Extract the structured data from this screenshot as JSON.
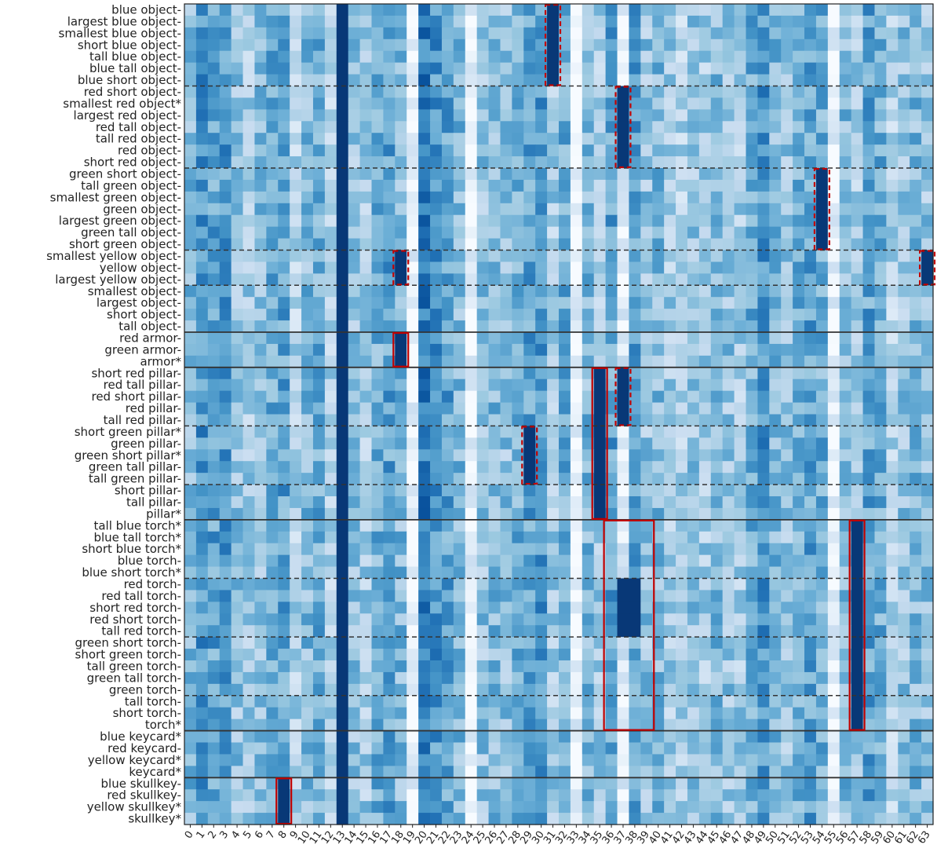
{
  "chart_data": {
    "type": "heatmap",
    "title": "",
    "xlabel": "",
    "ylabel": "",
    "colormap": "Blues",
    "colormap_stops": [
      "#f7fbff",
      "#deebf7",
      "#c6dbef",
      "#9ecae1",
      "#6baed6",
      "#4292c6",
      "#2171b5",
      "#08519c",
      "#08306b"
    ],
    "x_tick_labels": [
      "0",
      "1",
      "2",
      "3",
      "4",
      "5",
      "6",
      "7",
      "8",
      "9",
      "10",
      "11",
      "12",
      "13",
      "14",
      "15",
      "16",
      "17",
      "18",
      "19",
      "20",
      "21",
      "22",
      "23",
      "24",
      "25",
      "26",
      "27",
      "28",
      "29",
      "30",
      "31",
      "32",
      "33",
      "34",
      "35",
      "36",
      "37",
      "38",
      "39",
      "40",
      "41",
      "42",
      "43",
      "44",
      "45",
      "46",
      "47",
      "48",
      "49",
      "50",
      "51",
      "52",
      "53",
      "54",
      "55",
      "56",
      "57",
      "58",
      "59",
      "60",
      "61",
      "62",
      "63"
    ],
    "y_tick_labels": [
      "blue object-",
      "largest blue object-",
      "smallest blue object-",
      "short blue object-",
      "tall blue object-",
      "blue tall object-",
      "blue short object-",
      "red short object-",
      "smallest red object*",
      "largest red object-",
      "red tall object-",
      "tall red object-",
      "red object-",
      "short red object-",
      "green short object-",
      "tall green object-",
      "smallest green object-",
      "green object-",
      "largest green object-",
      "green tall object-",
      "short green object-",
      "smallest yellow object-",
      "yellow object-",
      "largest yellow object-",
      "smallest object-",
      "largest object-",
      "short object-",
      "tall object-",
      "red armor-",
      "green armor-",
      "armor*",
      "short red pillar-",
      "red tall pillar-",
      "red short pillar-",
      "red pillar-",
      "tall red pillar-",
      "short green pillar*",
      "green pillar-",
      "green short pillar*",
      "green tall pillar-",
      "tall green pillar-",
      "short pillar-",
      "tall pillar-",
      "pillar*",
      "tall blue torch*",
      "blue tall torch*",
      "short blue torch*",
      "blue torch-",
      "blue short torch*",
      "red torch-",
      "red tall torch-",
      "short red torch-",
      "red short torch-",
      "tall red torch-",
      "green short torch-",
      "short green torch-",
      "tall green torch-",
      "green tall torch-",
      "green torch-",
      "tall torch-",
      "short torch-",
      "torch*",
      "blue keycard*",
      "red keycard-",
      "yellow keycard*",
      "keycard*",
      "blue skullkey-",
      "red skullkey-",
      "yellow skullkey*",
      "skullkey*"
    ],
    "value_range": [
      0,
      1
    ],
    "column_means": [
      0.45,
      0.6,
      0.55,
      0.58,
      0.4,
      0.35,
      0.42,
      0.5,
      0.55,
      0.3,
      0.45,
      0.5,
      0.3,
      0.55,
      0.4,
      0.35,
      0.5,
      0.55,
      0.45,
      0.05,
      0.7,
      0.6,
      0.55,
      0.45,
      0.05,
      0.4,
      0.45,
      0.4,
      0.5,
      0.55,
      0.6,
      0.35,
      0.5,
      0.05,
      0.45,
      0.35,
      0.55,
      0.1,
      0.55,
      0.4,
      0.45,
      0.35,
      0.3,
      0.4,
      0.35,
      0.45,
      0.4,
      0.35,
      0.5,
      0.6,
      0.45,
      0.4,
      0.5,
      0.55,
      0.5,
      0.05,
      0.45,
      0.35,
      0.55,
      0.5,
      0.3,
      0.4,
      0.45,
      0.4
    ],
    "strong_cells": [
      {
        "cols": [
          31
        ],
        "rows_from": 0,
        "rows_to": 6
      },
      {
        "cols": [
          37
        ],
        "rows_from": 7,
        "rows_to": 13
      },
      {
        "cols": [
          54
        ],
        "rows_from": 14,
        "rows_to": 20
      },
      {
        "cols": [
          18
        ],
        "rows_from": 21,
        "rows_to": 23
      },
      {
        "cols": [
          63
        ],
        "rows_from": 21,
        "rows_to": 23
      },
      {
        "cols": [
          18
        ],
        "rows_from": 28,
        "rows_to": 30
      },
      {
        "cols": [
          35
        ],
        "rows_from": 31,
        "rows_to": 43
      },
      {
        "cols": [
          37
        ],
        "rows_from": 31,
        "rows_to": 35
      },
      {
        "cols": [
          29
        ],
        "rows_from": 36,
        "rows_to": 40
      },
      {
        "cols": [
          37,
          38
        ],
        "rows_from": 49,
        "rows_to": 53
      },
      {
        "cols": [
          57
        ],
        "rows_from": 44,
        "rows_to": 61
      },
      {
        "cols": [
          8
        ],
        "rows_from": 66,
        "rows_to": 69
      },
      {
        "cols": [
          13
        ],
        "rows_from": 0,
        "rows_to": 69
      }
    ],
    "group_separators_solid_after_row": [
      27,
      30,
      43,
      61,
      65
    ],
    "group_separators_dashed_after_row": [
      6,
      13,
      20,
      23,
      35,
      40,
      48,
      53,
      58
    ],
    "highlight_boxes": [
      {
        "style": "dashed",
        "col_from": 31,
        "col_to": 31,
        "row_from": 0,
        "row_to": 6,
        "color": "#c00000"
      },
      {
        "style": "dashed",
        "col_from": 37,
        "col_to": 37,
        "row_from": 7,
        "row_to": 13,
        "color": "#c00000"
      },
      {
        "style": "dashed",
        "col_from": 54,
        "col_to": 54,
        "row_from": 14,
        "row_to": 20,
        "color": "#c00000"
      },
      {
        "style": "dashed",
        "col_from": 18,
        "col_to": 18,
        "row_from": 21,
        "row_to": 23,
        "color": "#c00000"
      },
      {
        "style": "dashed",
        "col_from": 63,
        "col_to": 63,
        "row_from": 21,
        "row_to": 23,
        "color": "#c00000"
      },
      {
        "style": "solid",
        "col_from": 18,
        "col_to": 18,
        "row_from": 28,
        "row_to": 30,
        "color": "#c00000"
      },
      {
        "style": "solid",
        "col_from": 35,
        "col_to": 35,
        "row_from": 31,
        "row_to": 43,
        "color": "#c00000"
      },
      {
        "style": "dashed",
        "col_from": 37,
        "col_to": 37,
        "row_from": 31,
        "row_to": 35,
        "color": "#c00000"
      },
      {
        "style": "dashed",
        "col_from": 29,
        "col_to": 29,
        "row_from": 36,
        "row_to": 40,
        "color": "#c00000"
      },
      {
        "style": "solid",
        "col_from": 36,
        "col_to": 39,
        "row_from": 44,
        "row_to": 61,
        "color": "#c00000"
      },
      {
        "style": "solid",
        "col_from": 57,
        "col_to": 57,
        "row_from": 44,
        "row_to": 61,
        "color": "#c00000"
      },
      {
        "style": "solid",
        "col_from": 8,
        "col_to": 8,
        "row_from": 66,
        "row_to": 69,
        "color": "#c00000"
      }
    ],
    "legend": "none",
    "grid": false
  }
}
